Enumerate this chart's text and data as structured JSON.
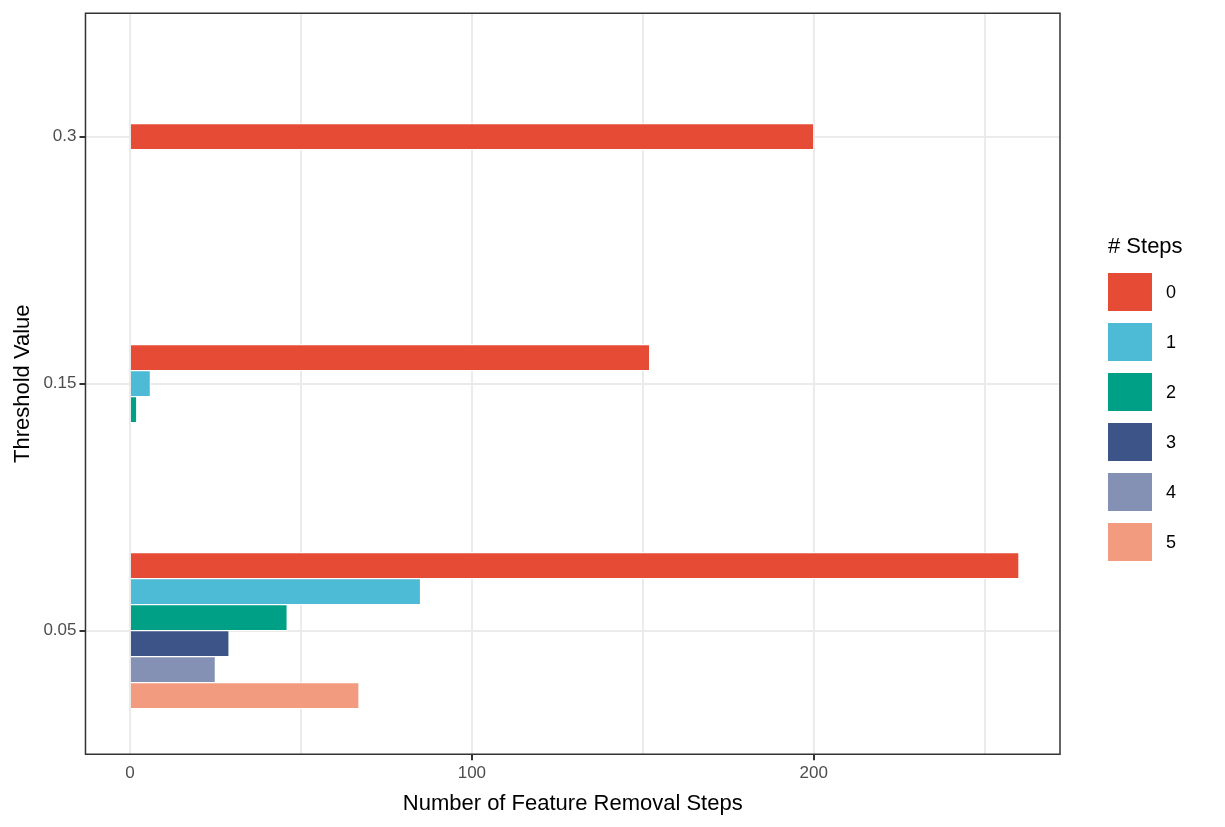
{
  "chart_data": {
    "type": "bar",
    "orientation": "horizontal",
    "xlabel": "Number of Feature Removal Steps",
    "ylabel": "Threshold Value",
    "legend_title": "# Steps",
    "legend": "right",
    "grid": true,
    "categories": [
      "0.3",
      "0.15",
      "0.05"
    ],
    "xlim": [
      -13,
      272
    ],
    "xticks": [
      0,
      {
        "value": 50,
        "label": null
      },
      100,
      {
        "value": 150,
        "label": null
      },
      200,
      {
        "value": 250,
        "label": null
      }
    ],
    "series": [
      {
        "name": "0",
        "color": "#e64b35",
        "values": [
          200,
          152,
          260
        ]
      },
      {
        "name": "1",
        "color": "#4dbbd5",
        "values": [
          null,
          6,
          85
        ]
      },
      {
        "name": "2",
        "color": "#00a087",
        "values": [
          null,
          2,
          46
        ]
      },
      {
        "name": "3",
        "color": "#3c5488",
        "values": [
          null,
          null,
          29
        ]
      },
      {
        "name": "4",
        "color": "#8491b4",
        "values": [
          null,
          null,
          25
        ]
      },
      {
        "name": "5",
        "color": "#f39b7f",
        "values": [
          null,
          null,
          67
        ]
      }
    ]
  }
}
